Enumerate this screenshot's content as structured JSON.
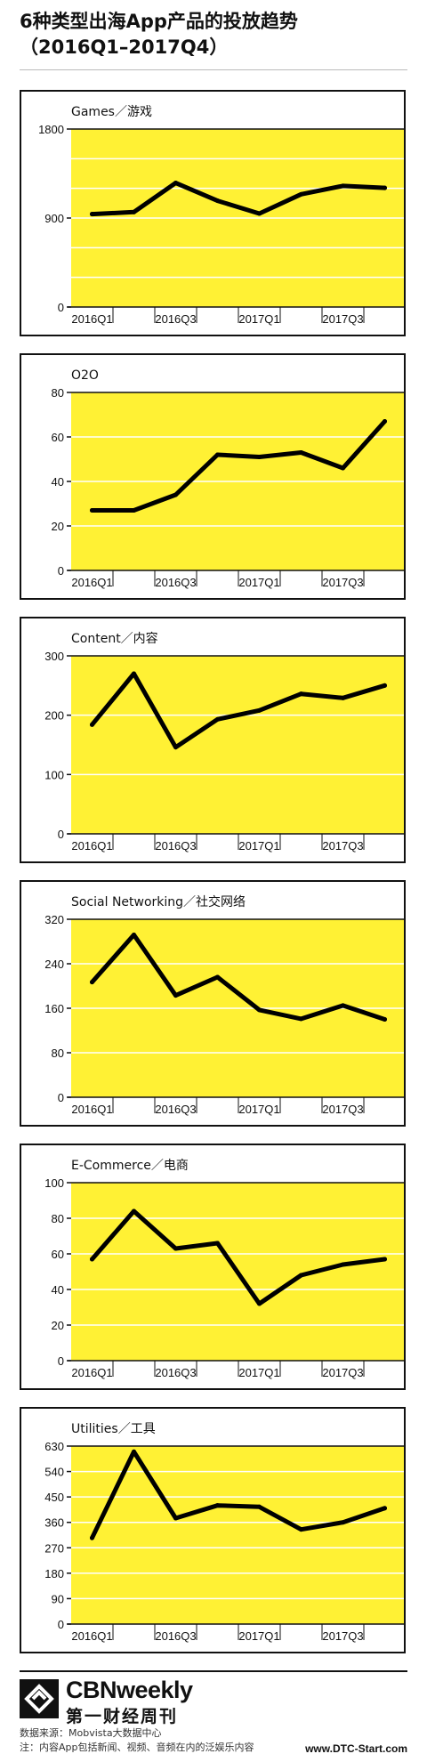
{
  "title": "6种类型出海App产品的投放趋势（2016Q1–2017Q4）",
  "title_line1": "6种类型出海App产品的投放趋势",
  "title_line2": "（2016Q1–2017Q4）",
  "colors": {
    "plot_bg": "#FFF134",
    "line": "#000000",
    "grid": "#ffffff",
    "border": "#111111"
  },
  "x_tick_labels": [
    "2016Q1",
    "2016Q3",
    "2017Q1",
    "2017Q3"
  ],
  "chart_data": [
    {
      "type": "line",
      "title": "Games／游戏",
      "x": [
        "2016Q1",
        "2016Q2",
        "2016Q3",
        "2016Q4",
        "2017Q1",
        "2017Q2",
        "2017Q3",
        "2017Q4"
      ],
      "tick_labels_x": [
        "2016Q1",
        "2016Q3",
        "2017Q1",
        "2017Q3"
      ],
      "values": [
        940,
        960,
        1255,
        1075,
        945,
        1140,
        1225,
        1205
      ],
      "ylim": [
        0,
        1800
      ],
      "yticks": [
        0,
        900,
        1800
      ],
      "grid_step": 300,
      "grid": true
    },
    {
      "type": "line",
      "title": "O2O",
      "x": [
        "2016Q1",
        "2016Q2",
        "2016Q3",
        "2016Q4",
        "2017Q1",
        "2017Q2",
        "2017Q3",
        "2017Q4"
      ],
      "tick_labels_x": [
        "2016Q1",
        "2016Q3",
        "2017Q1",
        "2017Q3"
      ],
      "values": [
        27,
        27,
        34,
        52,
        51,
        53,
        46,
        67
      ],
      "ylim": [
        0,
        80
      ],
      "yticks": [
        0,
        20,
        40,
        60,
        80
      ],
      "grid_step": 20,
      "grid": true
    },
    {
      "type": "line",
      "title": "Content／内容",
      "x": [
        "2016Q1",
        "2016Q2",
        "2016Q3",
        "2016Q4",
        "2017Q1",
        "2017Q2",
        "2017Q3",
        "2017Q4"
      ],
      "tick_labels_x": [
        "2016Q1",
        "2016Q3",
        "2017Q1",
        "2017Q3"
      ],
      "values": [
        184,
        270,
        146,
        193,
        208,
        236,
        229,
        250
      ],
      "ylim": [
        0,
        300
      ],
      "yticks": [
        0,
        100,
        200,
        300
      ],
      "grid_step": 100,
      "grid": true
    },
    {
      "type": "line",
      "title": "Social Networking／社交网络",
      "x": [
        "2016Q1",
        "2016Q2",
        "2016Q3",
        "2016Q4",
        "2017Q1",
        "2017Q2",
        "2017Q3",
        "2017Q4"
      ],
      "tick_labels_x": [
        "2016Q1",
        "2016Q3",
        "2017Q1",
        "2017Q3"
      ],
      "values": [
        207,
        292,
        183,
        216,
        157,
        141,
        165,
        140
      ],
      "ylim": [
        0,
        320
      ],
      "yticks": [
        0,
        80,
        160,
        240,
        320
      ],
      "grid_step": 80,
      "grid": true
    },
    {
      "type": "line",
      "title": "E-Commerce／电商",
      "x": [
        "2016Q1",
        "2016Q2",
        "2016Q3",
        "2016Q4",
        "2017Q1",
        "2017Q2",
        "2017Q3",
        "2017Q4"
      ],
      "tick_labels_x": [
        "2016Q1",
        "2016Q3",
        "2017Q1",
        "2017Q3"
      ],
      "values": [
        57,
        84,
        63,
        66,
        32,
        48,
        54,
        57
      ],
      "ylim": [
        0,
        100
      ],
      "yticks": [
        0,
        20,
        40,
        60,
        80,
        100
      ],
      "grid_step": 20,
      "grid": true
    },
    {
      "type": "line",
      "title": "Utilities／工具",
      "x": [
        "2016Q1",
        "2016Q2",
        "2016Q3",
        "2016Q4",
        "2017Q1",
        "2017Q2",
        "2017Q3",
        "2017Q4"
      ],
      "tick_labels_x": [
        "2016Q1",
        "2016Q3",
        "2017Q1",
        "2017Q3"
      ],
      "values": [
        305,
        610,
        375,
        420,
        415,
        335,
        360,
        410
      ],
      "ylim": [
        0,
        630
      ],
      "yticks": [
        0,
        90,
        180,
        270,
        360,
        450,
        540,
        630
      ],
      "grid_step": 90,
      "grid": true
    }
  ],
  "footer": {
    "brand": "CBNweekly",
    "brand_cn": "第一财经周刊",
    "source_line1": "数据来源：Mobvista大数据中心",
    "source_line2": "注：内容App包括新闻、视频、音频在内的泛娱乐内容",
    "site": "www.DTC-Start.com"
  }
}
